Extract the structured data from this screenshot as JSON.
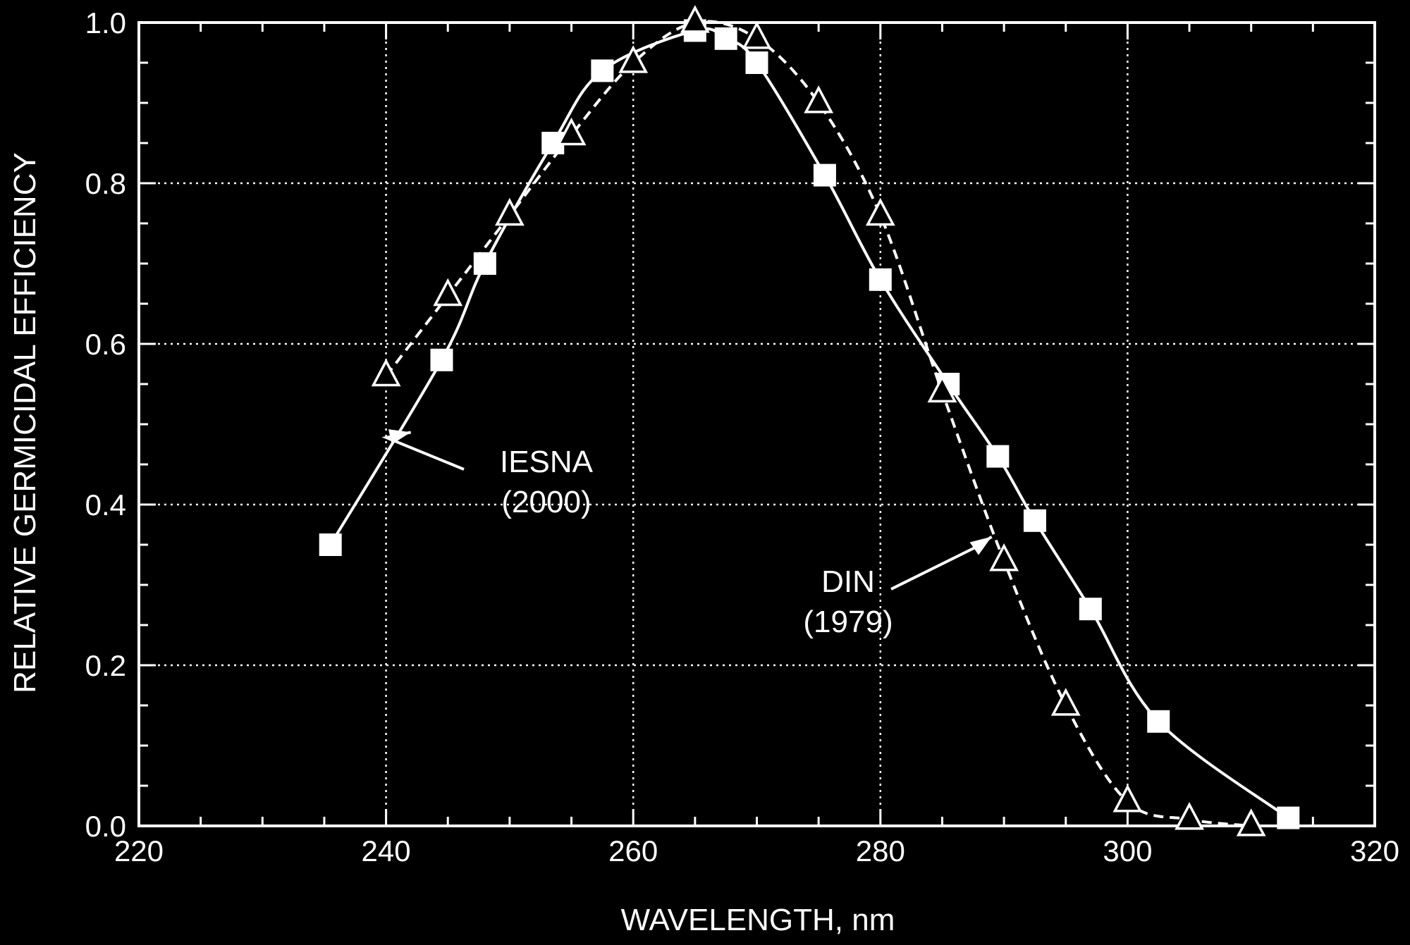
{
  "chart_data": {
    "type": "line",
    "title": "",
    "xlabel": "WAVELENGTH, nm",
    "ylabel": "RELATIVE GERMICIDAL EFFICIENCY",
    "xlim": [
      220,
      320
    ],
    "ylim": [
      0,
      1.0
    ],
    "x_ticks": [
      "220",
      "240",
      "260",
      "280",
      "300",
      "320"
    ],
    "y_ticks": [
      "0.0",
      "0.2",
      "0.4",
      "0.6",
      "0.8",
      "1.0"
    ],
    "grid": true,
    "colors": {
      "background": "#000000",
      "foreground": "#ffffff"
    },
    "series": [
      {
        "name": "IESNA (2000)",
        "marker": "square",
        "line_style": "solid",
        "x": [
          235.5,
          244.5,
          248.0,
          253.5,
          257.5,
          265.0,
          267.5,
          270.0,
          275.5,
          280.0,
          285.5,
          289.5,
          292.5,
          297.0,
          302.5,
          313.0
        ],
        "y": [
          0.35,
          0.58,
          0.7,
          0.85,
          0.94,
          0.99,
          0.98,
          0.95,
          0.81,
          0.68,
          0.55,
          0.46,
          0.38,
          0.27,
          0.13,
          0.01
        ]
      },
      {
        "name": "DIN (1979)",
        "marker": "triangle",
        "line_style": "dashed",
        "x": [
          240,
          245,
          250,
          255,
          260,
          265,
          270,
          275,
          280,
          285,
          290,
          295,
          300,
          305,
          310
        ],
        "y": [
          0.56,
          0.66,
          0.76,
          0.86,
          0.95,
          1.0,
          0.98,
          0.9,
          0.76,
          0.54,
          0.33,
          0.15,
          0.03,
          0.008,
          0.0
        ]
      }
    ],
    "annotations": [
      {
        "series": "IESNA (2000)",
        "line1": "IESNA",
        "line2": "(2000)",
        "arrow_to": [
          242.0,
          0.49
        ]
      },
      {
        "series": "DIN (1979)",
        "line1": "DIN",
        "line2": "(1979)",
        "arrow_to": [
          289.0,
          0.36
        ]
      }
    ]
  }
}
